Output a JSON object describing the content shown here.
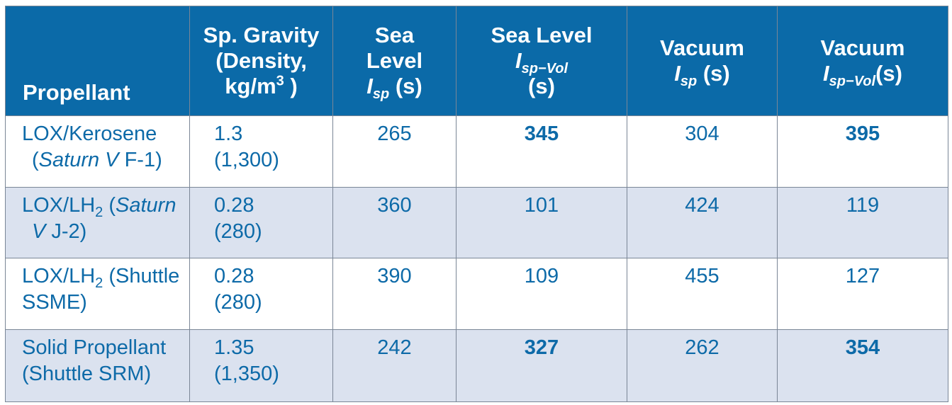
{
  "headers": {
    "propellant": "Propellant",
    "gravity": [
      "Sp. Gravity",
      "(Density,",
      "kg/m",
      "3",
      " )"
    ],
    "sea_isp": [
      "Sea",
      "Level",
      "I",
      "sp",
      " (s)"
    ],
    "sea_isp_vol": [
      "Sea Level",
      "I",
      "sp−Vol",
      "(s)"
    ],
    "vac_isp": [
      "Vacuum",
      "I",
      "sp",
      " (s)"
    ],
    "vac_isp_vol": [
      "Vacuum",
      "I",
      "sp−Vol",
      "(s)"
    ]
  },
  "rows": [
    {
      "name": [
        "LOX/Kerosene",
        "(",
        "Saturn V",
        " F-1)"
      ],
      "gravity": "1.3",
      "density": "(1,300)",
      "sea_isp": "265",
      "sea_isp_vol": "345",
      "vac_isp": "304",
      "vac_isp_vol": "395"
    },
    {
      "name": [
        "LOX/LH",
        "2",
        " (",
        "Saturn",
        "V",
        " J-2)"
      ],
      "gravity": "0.28",
      "density": "(280)",
      "sea_isp": "360",
      "sea_isp_vol": "101",
      "vac_isp": "424",
      "vac_isp_vol": "119"
    },
    {
      "name": [
        "LOX/LH",
        "2",
        " (Shuttle",
        "SSME)"
      ],
      "gravity": "0.28",
      "density": "(280)",
      "sea_isp": "390",
      "sea_isp_vol": "109",
      "vac_isp": "455",
      "vac_isp_vol": "127"
    },
    {
      "name": [
        "Solid Propellant",
        "(Shuttle SRM)"
      ],
      "gravity": "1.35",
      "density": "(1,350)",
      "sea_isp": "242",
      "sea_isp_vol": "327",
      "vac_isp": "262",
      "vac_isp_vol": "354"
    }
  ],
  "colors": {
    "header_bg": "#0b6aa8",
    "header_text": "#ffffff",
    "body_text": "#0d6aa8",
    "shaded_row": "#dbe2ef",
    "border": "#7a8696"
  }
}
